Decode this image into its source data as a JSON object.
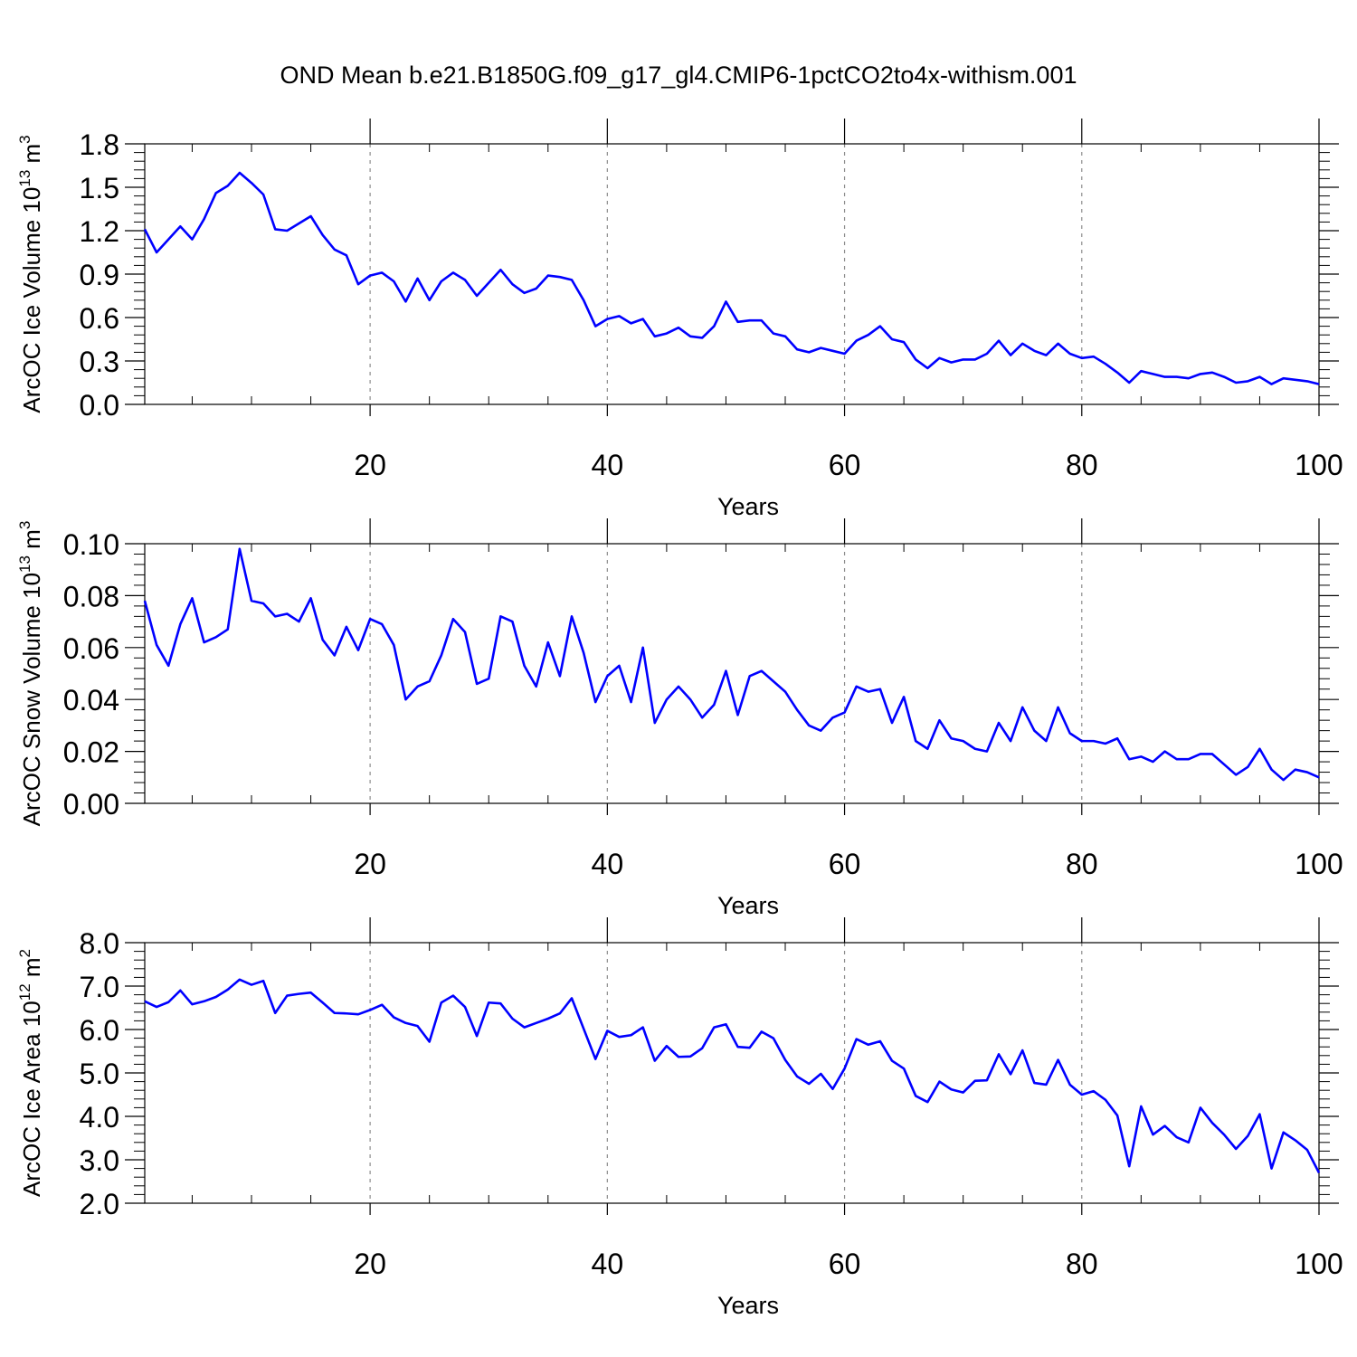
{
  "title": "OND Mean b.e21.B1850G.f09_g17_gl4.CMIP6-1pctCO2to4x-withism.001",
  "colors": {
    "line": "#0000ff",
    "axis": "#000000",
    "grid": "#8c8c8c",
    "background": "#ffffff"
  },
  "chart_data": [
    {
      "type": "line",
      "ylabel_main": "ArcOC Ice Volume 10",
      "ylabel_exp": "13",
      "ylabel_unit": " m",
      "ylabel_unit_exp": "3",
      "xlabel": "Years",
      "xlim": [
        1,
        100
      ],
      "ylim": [
        0.0,
        1.8
      ],
      "xticks": [
        20,
        40,
        60,
        80,
        100
      ],
      "xtick_labels": [
        "20",
        "40",
        "60",
        "80",
        "100"
      ],
      "yticks": [
        0.0,
        0.3,
        0.6,
        0.9,
        1.2,
        1.5,
        1.8
      ],
      "ytick_labels": [
        "0.0",
        "0.3",
        "0.6",
        "0.9",
        "1.2",
        "1.5",
        "1.8"
      ],
      "grid": "vertical dashed at major x ticks",
      "series": [
        {
          "values": [
            1.21,
            1.05,
            1.14,
            1.23,
            1.14,
            1.28,
            1.46,
            1.51,
            1.6,
            1.53,
            1.45,
            1.21,
            1.2,
            1.25,
            1.3,
            1.17,
            1.07,
            1.03,
            0.83,
            0.89,
            0.91,
            0.85,
            0.71,
            0.87,
            0.72,
            0.85,
            0.91,
            0.86,
            0.75,
            0.84,
            0.93,
            0.83,
            0.77,
            0.8,
            0.89,
            0.88,
            0.86,
            0.72,
            0.54,
            0.59,
            0.61,
            0.56,
            0.59,
            0.47,
            0.49,
            0.53,
            0.47,
            0.46,
            0.54,
            0.71,
            0.57,
            0.58,
            0.58,
            0.49,
            0.47,
            0.38,
            0.36,
            0.39,
            0.37,
            0.35,
            0.44,
            0.48,
            0.54,
            0.45,
            0.43,
            0.31,
            0.25,
            0.32,
            0.29,
            0.31,
            0.31,
            0.35,
            0.44,
            0.34,
            0.42,
            0.37,
            0.34,
            0.42,
            0.35,
            0.32,
            0.33,
            0.28,
            0.22,
            0.15,
            0.23,
            0.21,
            0.19,
            0.19,
            0.18,
            0.21,
            0.22,
            0.19,
            0.15,
            0.16,
            0.19,
            0.14,
            0.18,
            0.17,
            0.16,
            0.14
          ]
        }
      ]
    },
    {
      "type": "line",
      "ylabel_main": "ArcOC Snow Volume 10",
      "ylabel_exp": "13",
      "ylabel_unit": " m",
      "ylabel_unit_exp": "3",
      "xlabel": "Years",
      "xlim": [
        1,
        100
      ],
      "ylim": [
        0.0,
        0.1
      ],
      "xticks": [
        20,
        40,
        60,
        80,
        100
      ],
      "xtick_labels": [
        "20",
        "40",
        "60",
        "80",
        "100"
      ],
      "yticks": [
        0.0,
        0.02,
        0.04,
        0.06,
        0.08,
        0.1
      ],
      "ytick_labels": [
        "0.00",
        "0.02",
        "0.04",
        "0.06",
        "0.08",
        "0.10"
      ],
      "grid": "vertical dashed at major x ticks",
      "series": [
        {
          "values": [
            0.078,
            0.061,
            0.053,
            0.069,
            0.079,
            0.062,
            0.064,
            0.067,
            0.098,
            0.078,
            0.077,
            0.072,
            0.073,
            0.07,
            0.079,
            0.063,
            0.057,
            0.068,
            0.059,
            0.071,
            0.069,
            0.061,
            0.04,
            0.045,
            0.047,
            0.057,
            0.071,
            0.066,
            0.046,
            0.048,
            0.072,
            0.07,
            0.053,
            0.045,
            0.062,
            0.049,
            0.072,
            0.058,
            0.039,
            0.049,
            0.053,
            0.039,
            0.06,
            0.031,
            0.04,
            0.045,
            0.04,
            0.033,
            0.038,
            0.051,
            0.034,
            0.049,
            0.051,
            0.047,
            0.043,
            0.036,
            0.03,
            0.028,
            0.033,
            0.035,
            0.045,
            0.043,
            0.044,
            0.031,
            0.041,
            0.024,
            0.021,
            0.032,
            0.025,
            0.024,
            0.021,
            0.02,
            0.031,
            0.024,
            0.037,
            0.028,
            0.024,
            0.037,
            0.027,
            0.024,
            0.024,
            0.023,
            0.025,
            0.017,
            0.018,
            0.016,
            0.02,
            0.017,
            0.017,
            0.019,
            0.019,
            0.015,
            0.011,
            0.014,
            0.021,
            0.013,
            0.009,
            0.013,
            0.012,
            0.01
          ]
        }
      ]
    },
    {
      "type": "line",
      "ylabel_main": "ArcOC Ice Area 10",
      "ylabel_exp": "12",
      "ylabel_unit": " m",
      "ylabel_unit_exp": "2",
      "xlabel": "Years",
      "xlim": [
        1,
        100
      ],
      "ylim": [
        2.0,
        8.0
      ],
      "xticks": [
        20,
        40,
        60,
        80,
        100
      ],
      "xtick_labels": [
        "20",
        "40",
        "60",
        "80",
        "100"
      ],
      "yticks": [
        2.0,
        3.0,
        4.0,
        5.0,
        6.0,
        7.0,
        8.0
      ],
      "ytick_labels": [
        "2.0",
        "3.0",
        "4.0",
        "5.0",
        "6.0",
        "7.0",
        "8.0"
      ],
      "grid": "vertical dashed at major x ticks",
      "series": [
        {
          "values": [
            6.65,
            6.52,
            6.63,
            6.9,
            6.58,
            6.65,
            6.75,
            6.92,
            7.15,
            7.03,
            7.12,
            6.38,
            6.78,
            6.82,
            6.85,
            6.62,
            6.38,
            6.37,
            6.35,
            6.45,
            6.57,
            6.28,
            6.15,
            6.08,
            5.72,
            6.62,
            6.78,
            6.52,
            5.85,
            6.62,
            6.6,
            6.25,
            6.05,
            6.15,
            6.25,
            6.37,
            6.72,
            6.02,
            5.32,
            5.97,
            5.83,
            5.87,
            6.05,
            5.28,
            5.62,
            5.37,
            5.38,
            5.57,
            6.05,
            6.12,
            5.6,
            5.58,
            5.95,
            5.8,
            5.3,
            4.92,
            4.75,
            4.98,
            4.63,
            5.1,
            5.78,
            5.65,
            5.73,
            5.28,
            5.1,
            4.47,
            4.33,
            4.8,
            4.62,
            4.55,
            4.82,
            4.83,
            5.43,
            4.97,
            5.52,
            4.77,
            4.73,
            5.3,
            4.73,
            4.5,
            4.58,
            4.38,
            4.02,
            2.85,
            4.23,
            3.58,
            3.78,
            3.52,
            3.4,
            4.2,
            3.85,
            3.58,
            3.25,
            3.55,
            4.05,
            2.8,
            3.63,
            3.45,
            3.23,
            2.7
          ]
        }
      ]
    }
  ]
}
